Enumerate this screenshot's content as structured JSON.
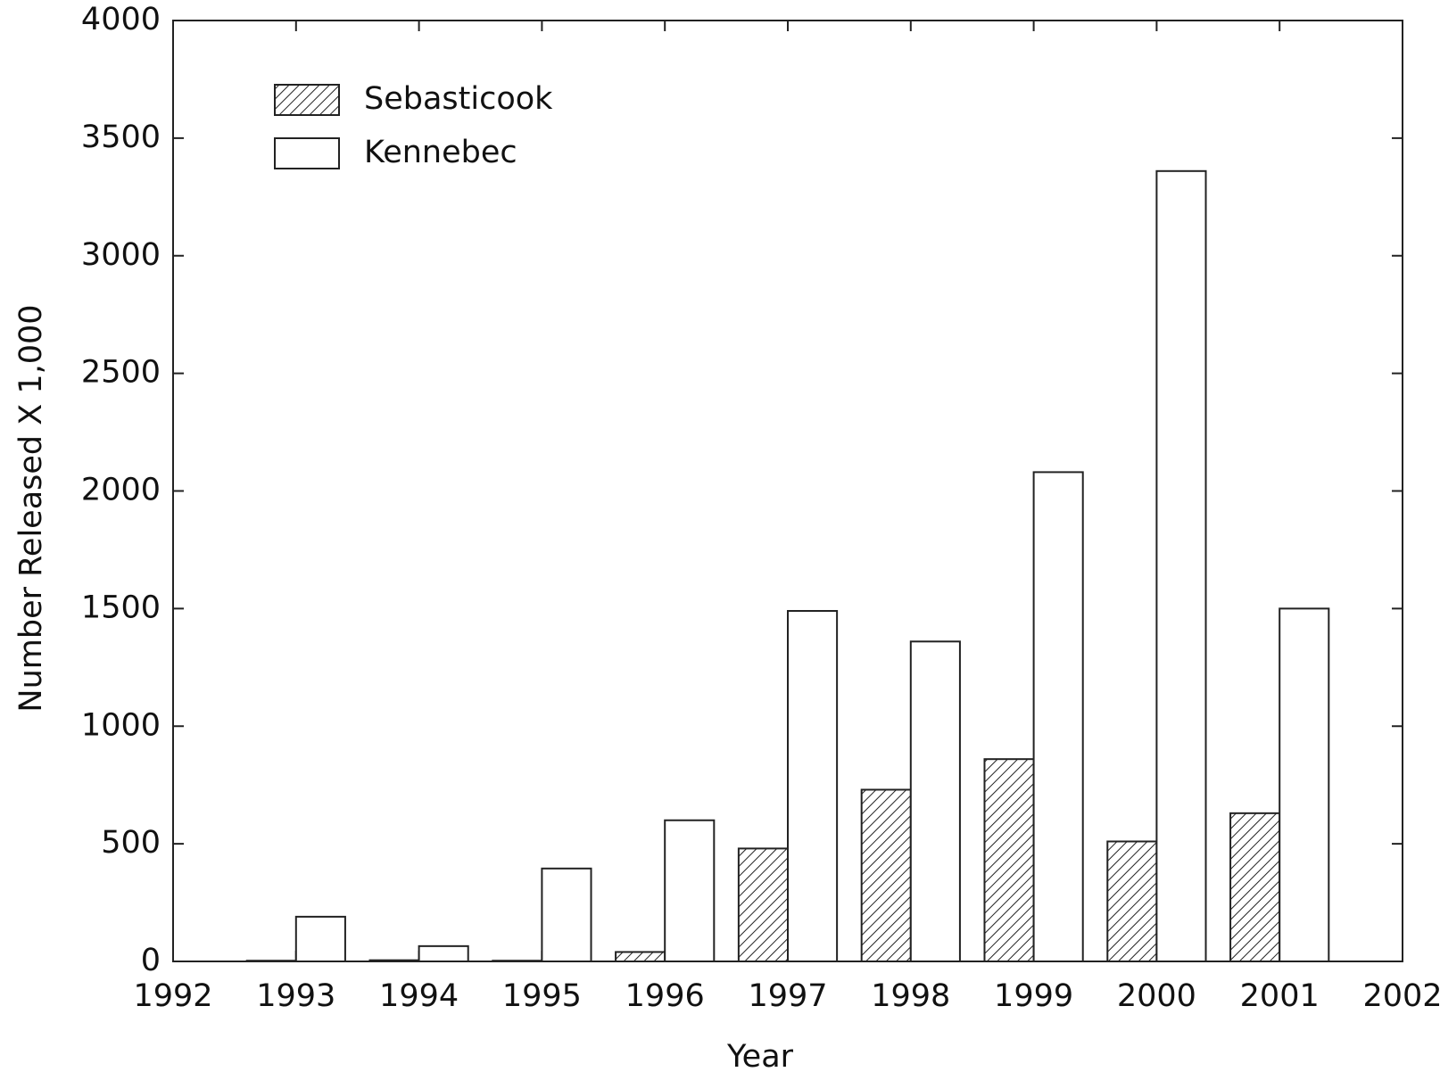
{
  "chart_data": {
    "type": "bar",
    "x_label": "Year",
    "y_label": "Number Released X 1,000",
    "x": [
      1993,
      1994,
      1995,
      1996,
      1997,
      1998,
      1999,
      2000,
      2001
    ],
    "series": [
      {
        "name": "Sebasticook",
        "color": "#ffffff",
        "pattern": "hatch",
        "values": [
          3,
          5,
          3,
          40,
          480,
          730,
          860,
          510,
          630
        ]
      },
      {
        "name": "Kennebec",
        "color": "#ffffff",
        "pattern": "none",
        "values": [
          190,
          65,
          395,
          600,
          1490,
          1360,
          2080,
          3360,
          1500
        ]
      }
    ],
    "xlim": [
      1992,
      2002
    ],
    "xticks": [
      1992,
      1993,
      1994,
      1995,
      1996,
      1997,
      1998,
      1999,
      2000,
      2001,
      2002
    ],
    "ylim": [
      0,
      4000
    ],
    "yticks": [
      0,
      500,
      1000,
      1500,
      2000,
      2500,
      3000,
      3500,
      4000
    ],
    "grid": false,
    "legend": "upper left"
  }
}
